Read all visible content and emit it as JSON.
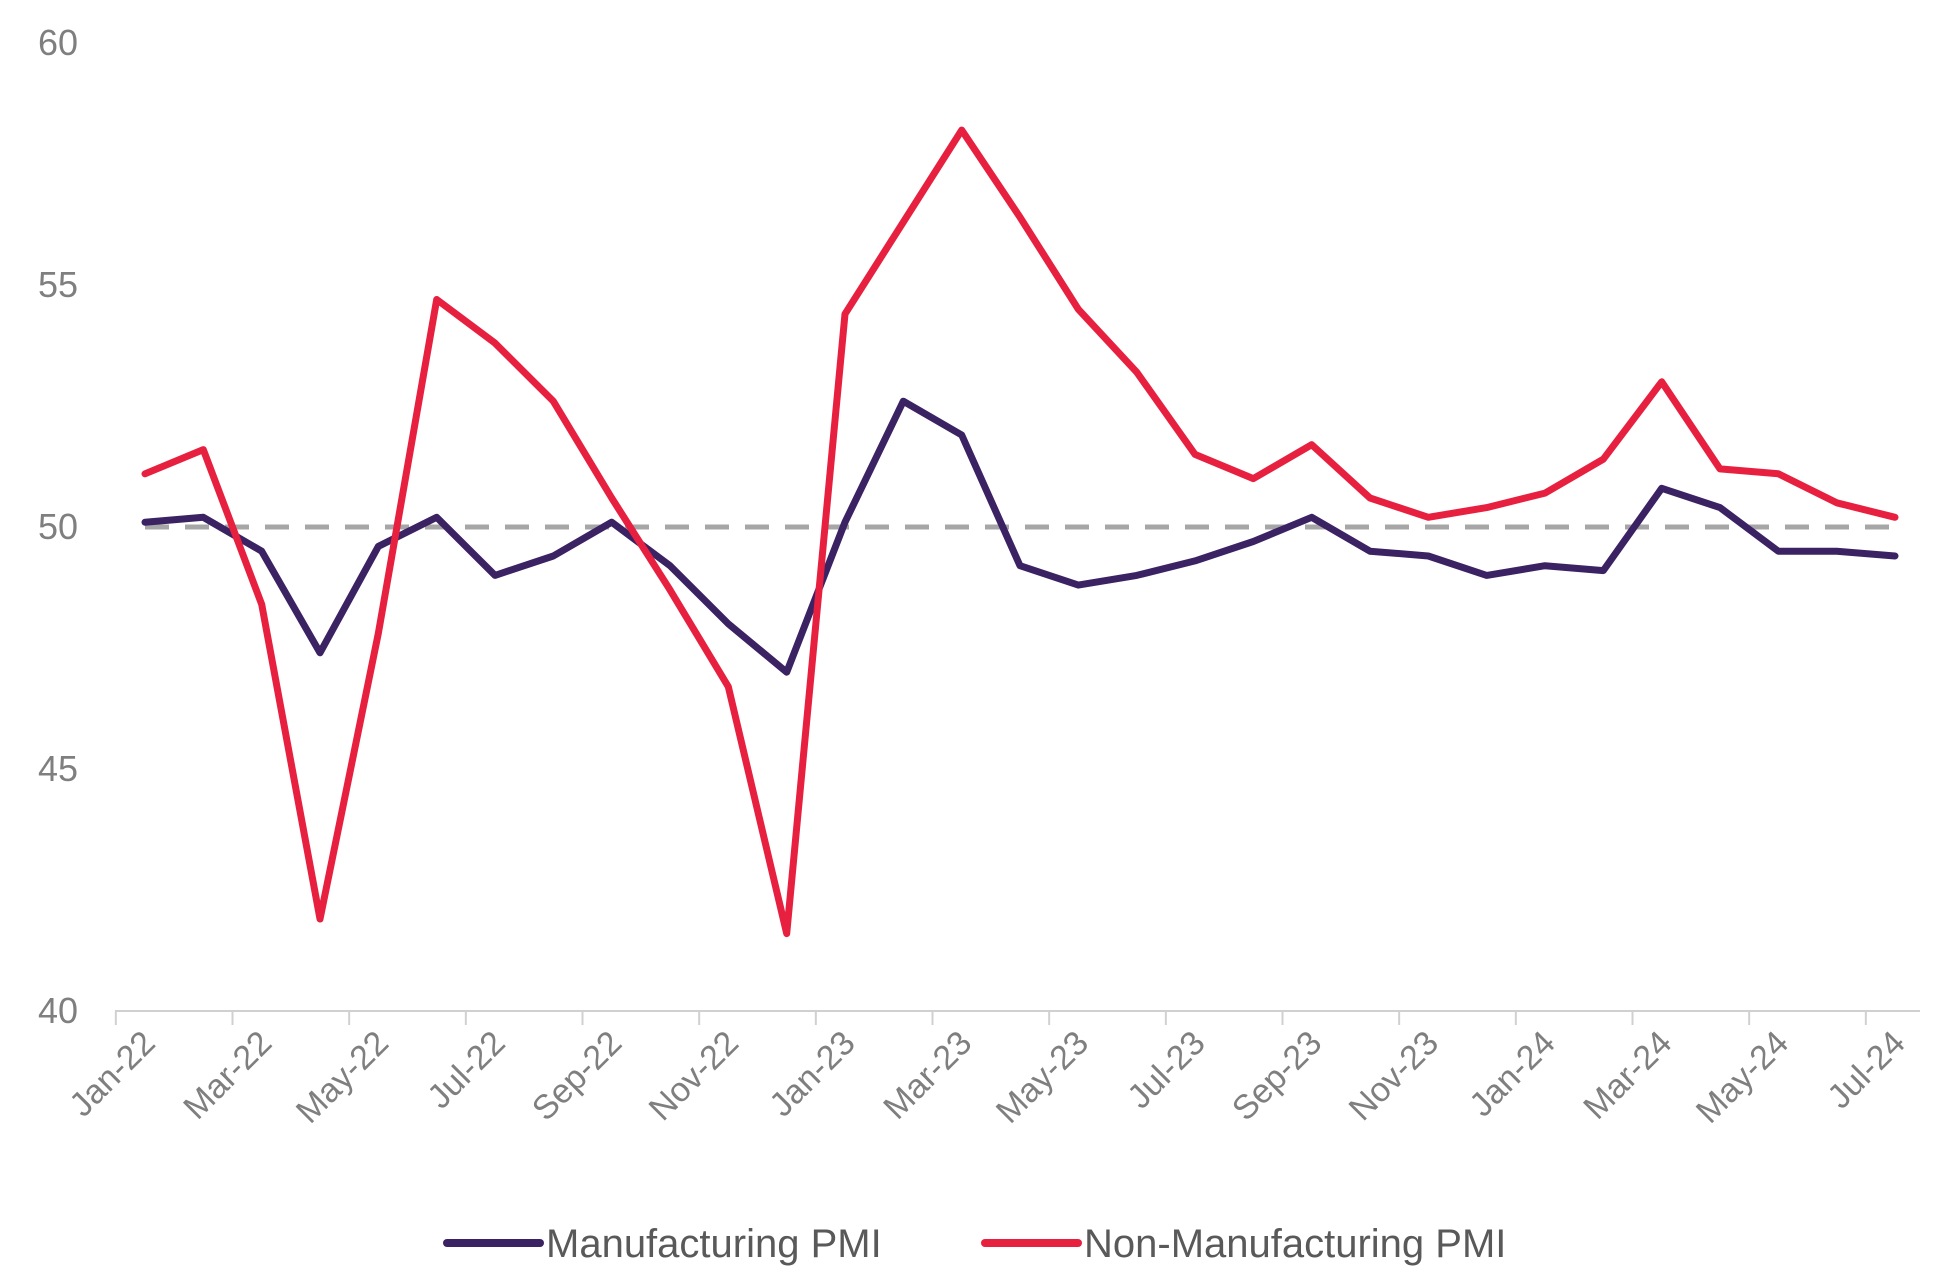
{
  "colors": {
    "manufacturing": "#3B2263",
    "non_manufacturing": "#E8203F",
    "reference": "#A6A6A6",
    "axis": "#D0D0D0",
    "tick_text": "#7F7F7F",
    "legend_text": "#595959"
  },
  "chart_data": {
    "type": "line",
    "title": "",
    "xlabel": "",
    "ylabel": "",
    "ylim": [
      40,
      60
    ],
    "yticks": [
      40,
      45,
      50,
      55,
      60
    ],
    "grid": false,
    "legend_position": "bottom-center",
    "x": [
      "Jan-22",
      "Feb-22",
      "Mar-22",
      "Apr-22",
      "May-22",
      "Jun-22",
      "Jul-22",
      "Aug-22",
      "Sep-22",
      "Oct-22",
      "Nov-22",
      "Dec-22",
      "Jan-23",
      "Feb-23",
      "Mar-23",
      "Apr-23",
      "May-23",
      "Jun-23",
      "Jul-23",
      "Aug-23",
      "Sep-23",
      "Oct-23",
      "Nov-23",
      "Dec-23",
      "Jan-24",
      "Feb-24",
      "Mar-24",
      "Apr-24",
      "May-24",
      "Jun-24",
      "Jul-24"
    ],
    "x_tick_labels": [
      "Jan-22",
      "Mar-22",
      "May-22",
      "Jul-22",
      "Sep-22",
      "Nov-22",
      "Jan-23",
      "Mar-23",
      "May-23",
      "Jul-23",
      "Sep-23",
      "Nov-23",
      "Jan-24",
      "Mar-24",
      "May-24",
      "Jul-24"
    ],
    "reference_line": {
      "value": 50,
      "style": "dashed"
    },
    "series": [
      {
        "name": "Manufacturing PMI",
        "color_key": "manufacturing",
        "values": [
          50.1,
          50.2,
          49.5,
          47.4,
          49.6,
          50.2,
          49.0,
          49.4,
          50.1,
          49.2,
          48.0,
          47.0,
          50.1,
          52.6,
          51.9,
          49.2,
          48.8,
          49.0,
          49.3,
          49.7,
          50.2,
          49.5,
          49.4,
          49.0,
          49.2,
          49.1,
          50.8,
          50.4,
          49.5,
          49.5,
          49.4
        ]
      },
      {
        "name": "Non-Manufacturing PMI",
        "color_key": "non_manufacturing",
        "values": [
          51.1,
          51.6,
          48.4,
          41.9,
          47.8,
          54.7,
          53.8,
          52.6,
          50.6,
          48.7,
          46.7,
          41.6,
          54.4,
          56.3,
          58.2,
          56.4,
          54.5,
          53.2,
          51.5,
          51.0,
          51.7,
          50.6,
          50.2,
          50.4,
          50.7,
          51.4,
          53.0,
          51.2,
          51.1,
          50.5,
          50.2
        ]
      }
    ]
  }
}
